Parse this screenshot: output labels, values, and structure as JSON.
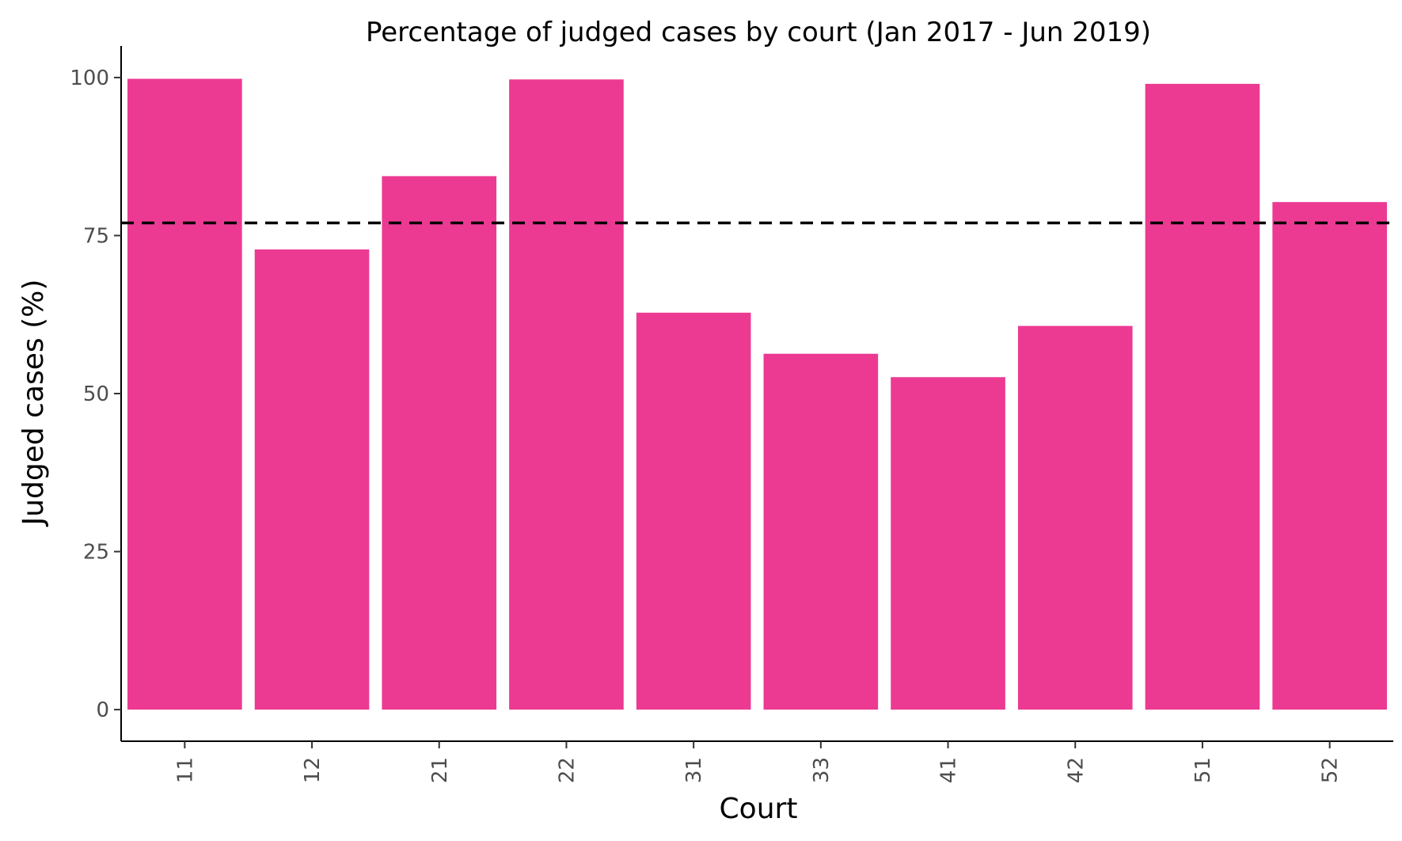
{
  "chart_data": {
    "type": "bar",
    "title": "Percentage of judged cases by court (Jan 2017 - Jun 2019)",
    "xlabel": "Court",
    "ylabel": "Judged cases (%)",
    "categories": [
      "11",
      "12",
      "21",
      "22",
      "31",
      "33",
      "41",
      "42",
      "51",
      "52"
    ],
    "values": [
      99.8,
      72.8,
      84.4,
      99.7,
      62.8,
      56.3,
      52.6,
      60.7,
      99.0,
      80.3
    ],
    "reference_line": {
      "value": 77.0,
      "style": "dashed"
    },
    "ylim": [
      -5,
      105
    ],
    "yticks": [
      0,
      25,
      50,
      75,
      100
    ],
    "grid": false,
    "legend": "none",
    "colors": {
      "bar": "#EC3A92",
      "reference_line": "#000000",
      "axis": "#000000",
      "tick_label": "#4d4d4d"
    }
  }
}
